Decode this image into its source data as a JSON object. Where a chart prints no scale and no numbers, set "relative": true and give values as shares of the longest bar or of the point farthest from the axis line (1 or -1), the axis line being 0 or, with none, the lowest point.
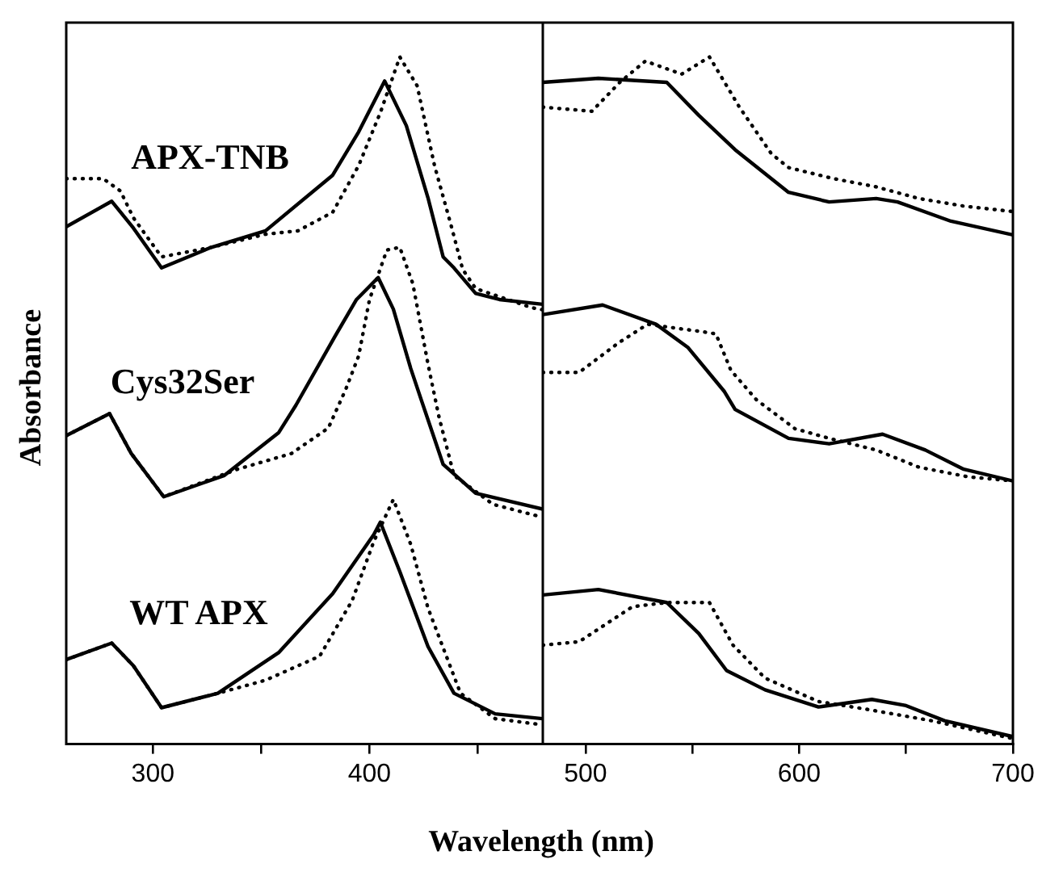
{
  "chart_data": [
    {
      "type": "line",
      "relative": true,
      "xlabel": "Wavelength (nm)",
      "ylabel": "Absorbance",
      "xlim": [
        260,
        480
      ],
      "xticks": [
        300,
        {
          "value": 350,
          "label": null
        },
        400,
        {
          "value": 450,
          "label": null
        }
      ],
      "tick_labels": "x",
      "annotations": [
        "APX-TNB",
        "Cys32Ser",
        "WT APX"
      ],
      "series": [
        {
          "color": "#000000",
          "line_style": "solid",
          "x": [
            260,
            281,
            291,
            304,
            327,
            352,
            383,
            395,
            407,
            417,
            427,
            434,
            439,
            449,
            460,
            480
          ],
          "values": [
            0.753,
            0.79,
            0.751,
            0.693,
            0.723,
            0.747,
            0.828,
            0.891,
            0.965,
            0.9,
            0.795,
            0.709,
            0.693,
            0.656,
            0.647,
            0.64
          ]
        },
        {
          "color": "#000000",
          "line_style": "dotted",
          "x": [
            260,
            277,
            285,
            291,
            304,
            327,
            352,
            367,
            383,
            395,
            405,
            414,
            422,
            430,
            438,
            443,
            449,
            475,
            480
          ],
          "values": [
            0.823,
            0.823,
            0.805,
            0.766,
            0.709,
            0.723,
            0.742,
            0.747,
            0.774,
            0.842,
            0.919,
            1.0,
            0.958,
            0.842,
            0.751,
            0.691,
            0.663,
            0.635,
            0.632
          ]
        },
        {
          "color": "#000000",
          "line_style": "solid",
          "x": [
            260,
            280,
            290,
            305,
            333,
            358,
            366,
            384,
            394,
            404,
            411,
            419,
            424,
            434,
            449,
            480
          ],
          "values": [
            0.449,
            0.481,
            0.423,
            0.36,
            0.391,
            0.453,
            0.493,
            0.593,
            0.647,
            0.679,
            0.633,
            0.547,
            0.5,
            0.407,
            0.365,
            0.342
          ]
        },
        {
          "color": "#000000",
          "line_style": "dotted",
          "x": [
            260,
            280,
            290,
            305,
            339,
            364,
            381,
            389,
            395,
            400,
            408,
            414,
            420,
            427,
            432,
            439,
            457,
            480
          ],
          "values": [
            0.449,
            0.481,
            0.423,
            0.36,
            0.4,
            0.423,
            0.46,
            0.516,
            0.565,
            0.647,
            0.719,
            0.723,
            0.67,
            0.553,
            0.477,
            0.391,
            0.349,
            0.33
          ]
        },
        {
          "color": "#000000",
          "line_style": "solid",
          "x": [
            260,
            281,
            291,
            304,
            330,
            358,
            383,
            402,
            405,
            414,
            427,
            439,
            458,
            480
          ],
          "values": [
            0.123,
            0.147,
            0.114,
            0.053,
            0.074,
            0.133,
            0.219,
            0.305,
            0.323,
            0.251,
            0.142,
            0.074,
            0.044,
            0.037
          ]
        },
        {
          "color": "#000000",
          "line_style": "dotted",
          "x": [
            260,
            281,
            291,
            304,
            330,
            352,
            377,
            392,
            402,
            411,
            419,
            427,
            442,
            458,
            480
          ],
          "values": [
            0.123,
            0.147,
            0.114,
            0.053,
            0.074,
            0.093,
            0.128,
            0.209,
            0.295,
            0.356,
            0.291,
            0.198,
            0.074,
            0.037,
            0.028
          ]
        }
      ]
    },
    {
      "type": "line",
      "relative": true,
      "xlim": [
        480,
        700
      ],
      "xticks": [
        500,
        {
          "value": 550,
          "label": null
        },
        600,
        {
          "value": 650,
          "label": null
        },
        700
      ],
      "tick_labels": "x",
      "series": [
        {
          "color": "#000000",
          "line_style": "solid",
          "x": [
            480,
            506,
            538,
            553,
            570,
            595,
            614,
            636,
            646,
            671,
            700
          ],
          "values": [
            0.963,
            0.969,
            0.963,
            0.915,
            0.865,
            0.803,
            0.789,
            0.794,
            0.789,
            0.761,
            0.741
          ]
        },
        {
          "color": "#000000",
          "line_style": "dotted",
          "x": [
            480,
            503,
            516,
            528,
            545,
            558,
            572,
            587,
            595,
            616,
            636,
            656,
            677,
            700
          ],
          "values": [
            0.927,
            0.921,
            0.963,
            0.994,
            0.975,
            1.0,
            0.927,
            0.859,
            0.839,
            0.823,
            0.811,
            0.794,
            0.783,
            0.775
          ]
        },
        {
          "color": "#000000",
          "line_style": "solid",
          "x": [
            480,
            508,
            533,
            548,
            565,
            570,
            595,
            614,
            639,
            659,
            677,
            700
          ],
          "values": [
            0.625,
            0.639,
            0.611,
            0.577,
            0.513,
            0.487,
            0.445,
            0.437,
            0.451,
            0.428,
            0.4,
            0.383
          ]
        },
        {
          "color": "#000000",
          "line_style": "dotted",
          "x": [
            480,
            497,
            515,
            529,
            555,
            561,
            568,
            580,
            598,
            614,
            636,
            656,
            679,
            700
          ],
          "values": [
            0.541,
            0.541,
            0.583,
            0.611,
            0.6,
            0.597,
            0.544,
            0.501,
            0.459,
            0.445,
            0.428,
            0.403,
            0.389,
            0.383
          ]
        },
        {
          "color": "#000000",
          "line_style": "solid",
          "x": [
            480,
            506,
            538,
            553,
            566,
            584,
            609,
            634,
            650,
            668,
            700
          ],
          "values": [
            0.217,
            0.225,
            0.206,
            0.161,
            0.107,
            0.079,
            0.054,
            0.065,
            0.056,
            0.034,
            0.011
          ]
        },
        {
          "color": "#000000",
          "line_style": "dotted",
          "x": [
            480,
            497,
            522,
            538,
            558,
            569,
            584,
            609,
            631,
            662,
            700
          ],
          "values": [
            0.144,
            0.149,
            0.2,
            0.206,
            0.206,
            0.144,
            0.096,
            0.062,
            0.051,
            0.034,
            0.008
          ]
        }
      ]
    }
  ]
}
